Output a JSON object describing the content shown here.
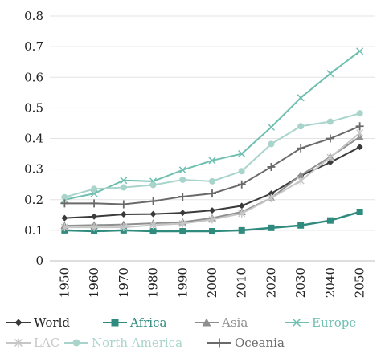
{
  "chart_data": {
    "type": "line",
    "title": "",
    "xlabel": "",
    "ylabel": "",
    "ylim": [
      0,
      0.8
    ],
    "yticks": [
      "0",
      "0.1",
      "0.2",
      "0.3",
      "0.4",
      "0.5",
      "0.6",
      "0.7",
      "0.8"
    ],
    "x": [
      "1950",
      "1960",
      "1970",
      "1980",
      "1990",
      "2000",
      "2010",
      "2020",
      "2030",
      "2040",
      "2050"
    ],
    "grid": "horizontal",
    "legend_position": "bottom",
    "series": [
      {
        "name": "World",
        "color": "#3a3a3a",
        "marker": "diamond",
        "values": [
          0.14,
          0.145,
          0.152,
          0.153,
          0.157,
          0.165,
          0.18,
          0.22,
          0.278,
          0.322,
          0.372
        ]
      },
      {
        "name": "Africa",
        "color": "#2e8b7e",
        "marker": "square",
        "values": [
          0.1,
          0.097,
          0.1,
          0.097,
          0.097,
          0.097,
          0.1,
          0.108,
          0.116,
          0.132,
          0.16
        ]
      },
      {
        "name": "Asia",
        "color": "#8f8f8f",
        "marker": "triangle",
        "values": [
          0.115,
          0.117,
          0.119,
          0.123,
          0.127,
          0.14,
          0.16,
          0.205,
          0.28,
          0.34,
          0.405
        ]
      },
      {
        "name": "Europe",
        "color": "#6fbfb0",
        "marker": "x",
        "values": [
          0.2,
          0.22,
          0.263,
          0.26,
          0.297,
          0.328,
          0.35,
          0.437,
          0.533,
          0.612,
          0.685
        ]
      },
      {
        "name": "LAC",
        "color": "#c6c6c6",
        "marker": "star",
        "values": [
          0.11,
          0.11,
          0.11,
          0.117,
          0.122,
          0.135,
          0.155,
          0.205,
          0.262,
          0.338,
          0.418
        ]
      },
      {
        "name": "North America",
        "color": "#a9d4cb",
        "marker": "circle",
        "values": [
          0.208,
          0.235,
          0.24,
          0.248,
          0.265,
          0.26,
          0.293,
          0.382,
          0.44,
          0.455,
          0.482
        ]
      },
      {
        "name": "Oceania",
        "color": "#6a6a6a",
        "marker": "plus",
        "values": [
          0.188,
          0.188,
          0.185,
          0.195,
          0.21,
          0.22,
          0.25,
          0.307,
          0.368,
          0.4,
          0.44
        ]
      }
    ]
  }
}
